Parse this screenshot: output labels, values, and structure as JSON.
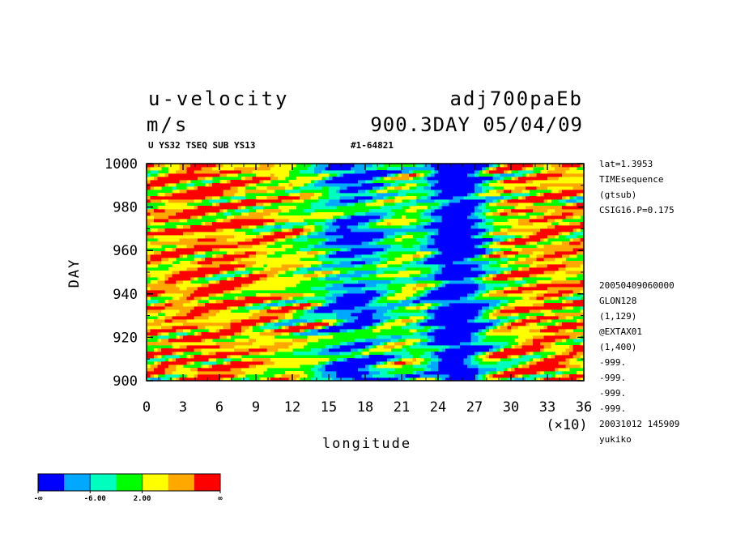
{
  "header": {
    "variable": "u-velocity",
    "units": "m/s",
    "run_name": "adj700paEb",
    "time_info": "900.3DAY 05/04/09",
    "subtitle": "U YS32 TSEQ SUB YS13",
    "id_code": "#1-64821"
  },
  "side_info": {
    "top": [
      "lat=1.3953",
      "TIMEsequence",
      "(gtsub)",
      "CSIG16.P=0.175"
    ],
    "bottom": [
      "20050409060000",
      "GLON128",
      "(1,129)",
      "@EXTAX01",
      "(1,400)",
      "-999.",
      "-999.",
      "-999.",
      "-999.",
      "20031012 145909",
      "yukiko"
    ]
  },
  "colorbar": {
    "colors": [
      "#0000ff",
      "#00a8ff",
      "#00ffbf",
      "#00ff00",
      "#ffff00",
      "#ffa800",
      "#ff0000"
    ],
    "labels": [
      "-∞",
      "-6.00",
      "2.00",
      "∞"
    ]
  },
  "chart_data": {
    "type": "heatmap",
    "xlabel": "longitude",
    "ylabel": "DAY",
    "x_multiplier_label": "(×10)",
    "xlim": [
      0,
      36
    ],
    "ylim": [
      900,
      1000
    ],
    "x_ticks": [
      "0",
      "3",
      "6",
      "9",
      "12",
      "15",
      "18",
      "21",
      "24",
      "27",
      "30",
      "33",
      "36"
    ],
    "y_ticks": [
      "900",
      "920",
      "940",
      "960",
      "980",
      "1000"
    ],
    "features": [
      {
        "description": "negative band",
        "x_center": 17,
        "color": "blue"
      },
      {
        "description": "strong negative band",
        "x_center": 25.5,
        "color": "blue"
      },
      {
        "description": "positive streaks",
        "x_range": [
          0,
          12
        ],
        "color": "red"
      },
      {
        "description": "positive streaks",
        "x_range": [
          29,
          36
        ],
        "color": "red"
      }
    ]
  }
}
